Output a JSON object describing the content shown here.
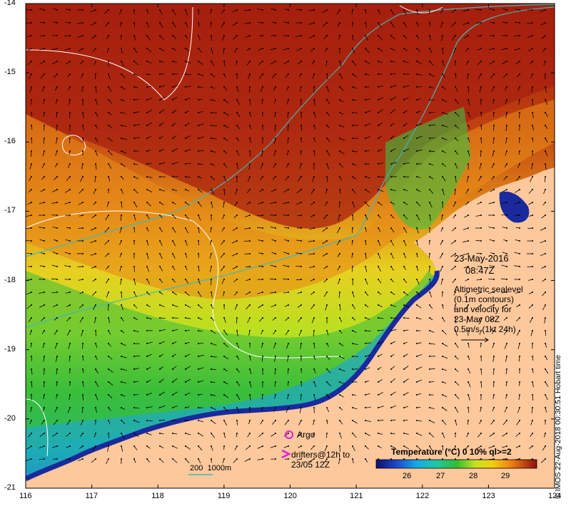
{
  "map": {
    "x_ticks": [
      "116",
      "117",
      "118",
      "119",
      "120",
      "121",
      "122",
      "123",
      "124"
    ],
    "y_ticks": [
      "-14",
      "-15",
      "-16",
      "-17",
      "-18",
      "-19",
      "-20",
      "-21"
    ],
    "lon_range": [
      116,
      124
    ],
    "lat_range": [
      -21,
      -14
    ]
  },
  "annotations": {
    "date": "23-May-2016",
    "time": "08:47Z",
    "altimetry": [
      "Altimetric sealevel",
      "(0.1m contours)",
      "and velocity for",
      "23-May 08Z",
      "0.5m/s (1kt 24h)"
    ],
    "argo_label": "Argo",
    "drifters_label": [
      "drifters@12h to",
      "23/05 12Z"
    ],
    "depth_label": "200  1000m",
    "colorbar_title": "Temperature (°C) 0 10% ql>=2",
    "colorbar_ticks": [
      "26",
      "27",
      "28",
      "29"
    ],
    "credit": "© IMOS 22-Aug-2018 00:30:51 Hobart time"
  },
  "colors": {
    "land": "#fcc89c",
    "warm": "#b82810",
    "cold": "#1a2a9c",
    "contour": "#ffffff",
    "bathy": "#3fb9b6",
    "argo": "#e020e0"
  }
}
